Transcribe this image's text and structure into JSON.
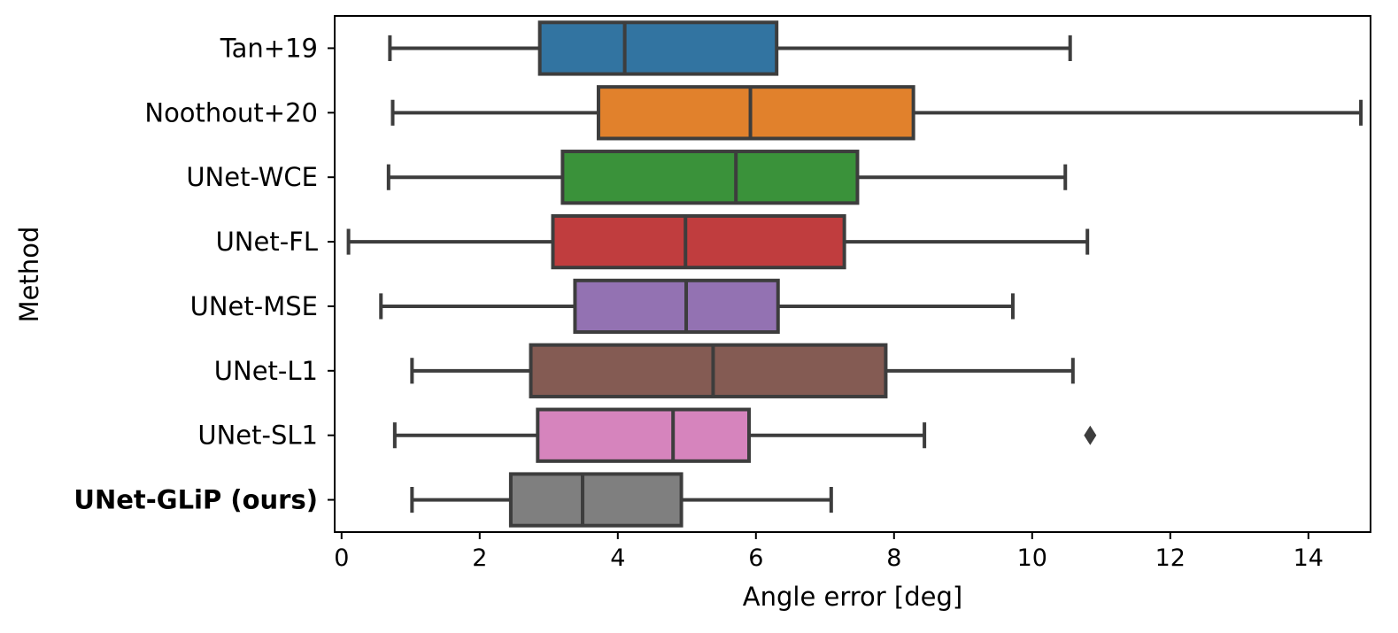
{
  "chart_data": {
    "type": "boxplot",
    "orientation": "horizontal",
    "xlabel": "Angle error [deg]",
    "ylabel": "Method",
    "xlim": [
      -0.1,
      14.9
    ],
    "xticks": [
      0,
      2,
      4,
      6,
      8,
      10,
      12,
      14
    ],
    "grid": false,
    "categories": [
      {
        "name": "Tan+19",
        "color": "#3274a1",
        "bold": false,
        "whisker_low": 0.7,
        "q1": 2.87,
        "median": 4.1,
        "q3": 6.3,
        "whisker_high": 10.55,
        "outliers": []
      },
      {
        "name": "Noothout+20",
        "color": "#e1812c",
        "bold": false,
        "whisker_low": 0.74,
        "q1": 3.72,
        "median": 5.92,
        "q3": 8.28,
        "whisker_high": 14.76,
        "outliers": []
      },
      {
        "name": "UNet-WCE",
        "color": "#3a923a",
        "bold": false,
        "whisker_low": 0.68,
        "q1": 3.2,
        "median": 5.71,
        "q3": 7.47,
        "whisker_high": 10.48,
        "outliers": []
      },
      {
        "name": "UNet-FL",
        "color": "#c03d3e",
        "bold": false,
        "whisker_low": 0.1,
        "q1": 3.06,
        "median": 4.98,
        "q3": 7.28,
        "whisker_high": 10.8,
        "outliers": []
      },
      {
        "name": "UNet-MSE",
        "color": "#9372b2",
        "bold": false,
        "whisker_low": 0.57,
        "q1": 3.38,
        "median": 4.99,
        "q3": 6.32,
        "whisker_high": 9.72,
        "outliers": []
      },
      {
        "name": "UNet-L1",
        "color": "#845b53",
        "bold": false,
        "whisker_low": 1.02,
        "q1": 2.74,
        "median": 5.38,
        "q3": 7.88,
        "whisker_high": 10.59,
        "outliers": []
      },
      {
        "name": "UNet-SL1",
        "color": "#d684bd",
        "bold": false,
        "whisker_low": 0.77,
        "q1": 2.84,
        "median": 4.8,
        "q3": 5.9,
        "whisker_high": 8.44,
        "outliers": [
          10.84
        ]
      },
      {
        "name": "UNet-GLiP (ours)",
        "color": "#7f7f7f",
        "bold": true,
        "whisker_low": 1.02,
        "q1": 2.45,
        "median": 3.49,
        "q3": 4.92,
        "whisker_high": 7.09,
        "outliers": []
      }
    ]
  }
}
